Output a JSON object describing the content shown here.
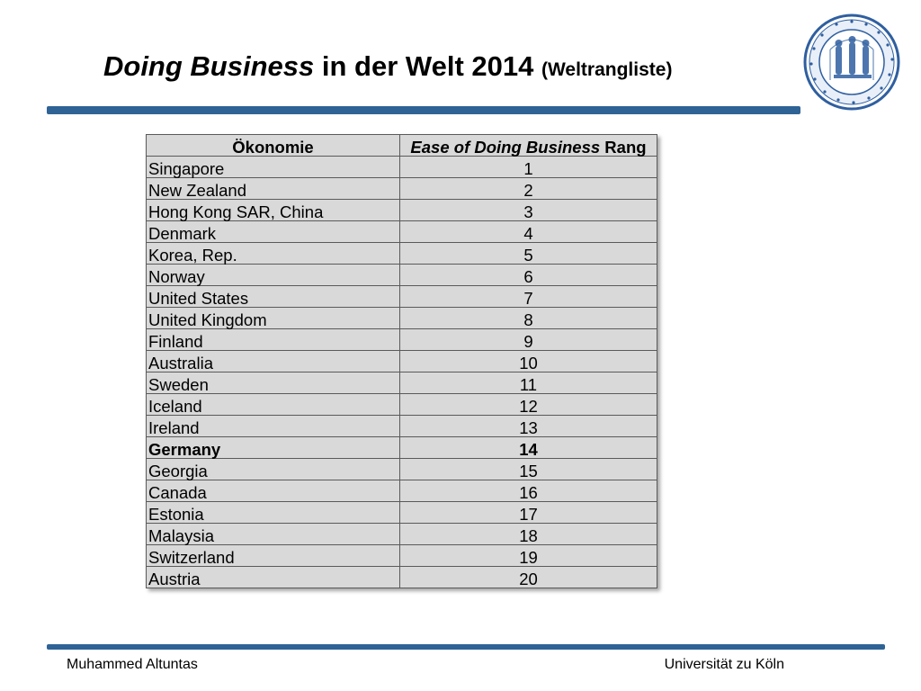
{
  "slide": {
    "title_emph": "Doing Business",
    "title_rest": " in der Welt 2014 ",
    "title_sub": "(Weltrangliste)"
  },
  "logo": {
    "name": "university-seal-icon",
    "accent": "#2f5fa0"
  },
  "colors": {
    "rule": "#2f6396",
    "table_bg": "#d9d9d9"
  },
  "table": {
    "headers": {
      "col1": "Ökonomie",
      "col2_emph": "Ease of Doing Business",
      "col2_rest": " Rang"
    },
    "rows": [
      {
        "country": "Singapore",
        "rank": "1"
      },
      {
        "country": "New Zealand",
        "rank": "2"
      },
      {
        "country": "Hong Kong SAR, China",
        "rank": "3"
      },
      {
        "country": "Denmark",
        "rank": "4"
      },
      {
        "country": "Korea, Rep.",
        "rank": "5"
      },
      {
        "country": "Norway",
        "rank": "6"
      },
      {
        "country": "United States",
        "rank": "7"
      },
      {
        "country": "United Kingdom",
        "rank": "8"
      },
      {
        "country": "Finland",
        "rank": "9"
      },
      {
        "country": "Australia",
        "rank": "10"
      },
      {
        "country": "Sweden",
        "rank": "11"
      },
      {
        "country": "Iceland",
        "rank": "12"
      },
      {
        "country": "Ireland",
        "rank": "13"
      },
      {
        "country": "Germany",
        "rank": "14",
        "highlight": true
      },
      {
        "country": "Georgia",
        "rank": "15"
      },
      {
        "country": "Canada",
        "rank": "16"
      },
      {
        "country": "Estonia",
        "rank": "17"
      },
      {
        "country": "Malaysia",
        "rank": "18"
      },
      {
        "country": "Switzerland",
        "rank": "19"
      },
      {
        "country": "Austria",
        "rank": "20"
      }
    ]
  },
  "footer": {
    "author": "Muhammed Altuntas",
    "institution": "Universität zu Köln"
  }
}
